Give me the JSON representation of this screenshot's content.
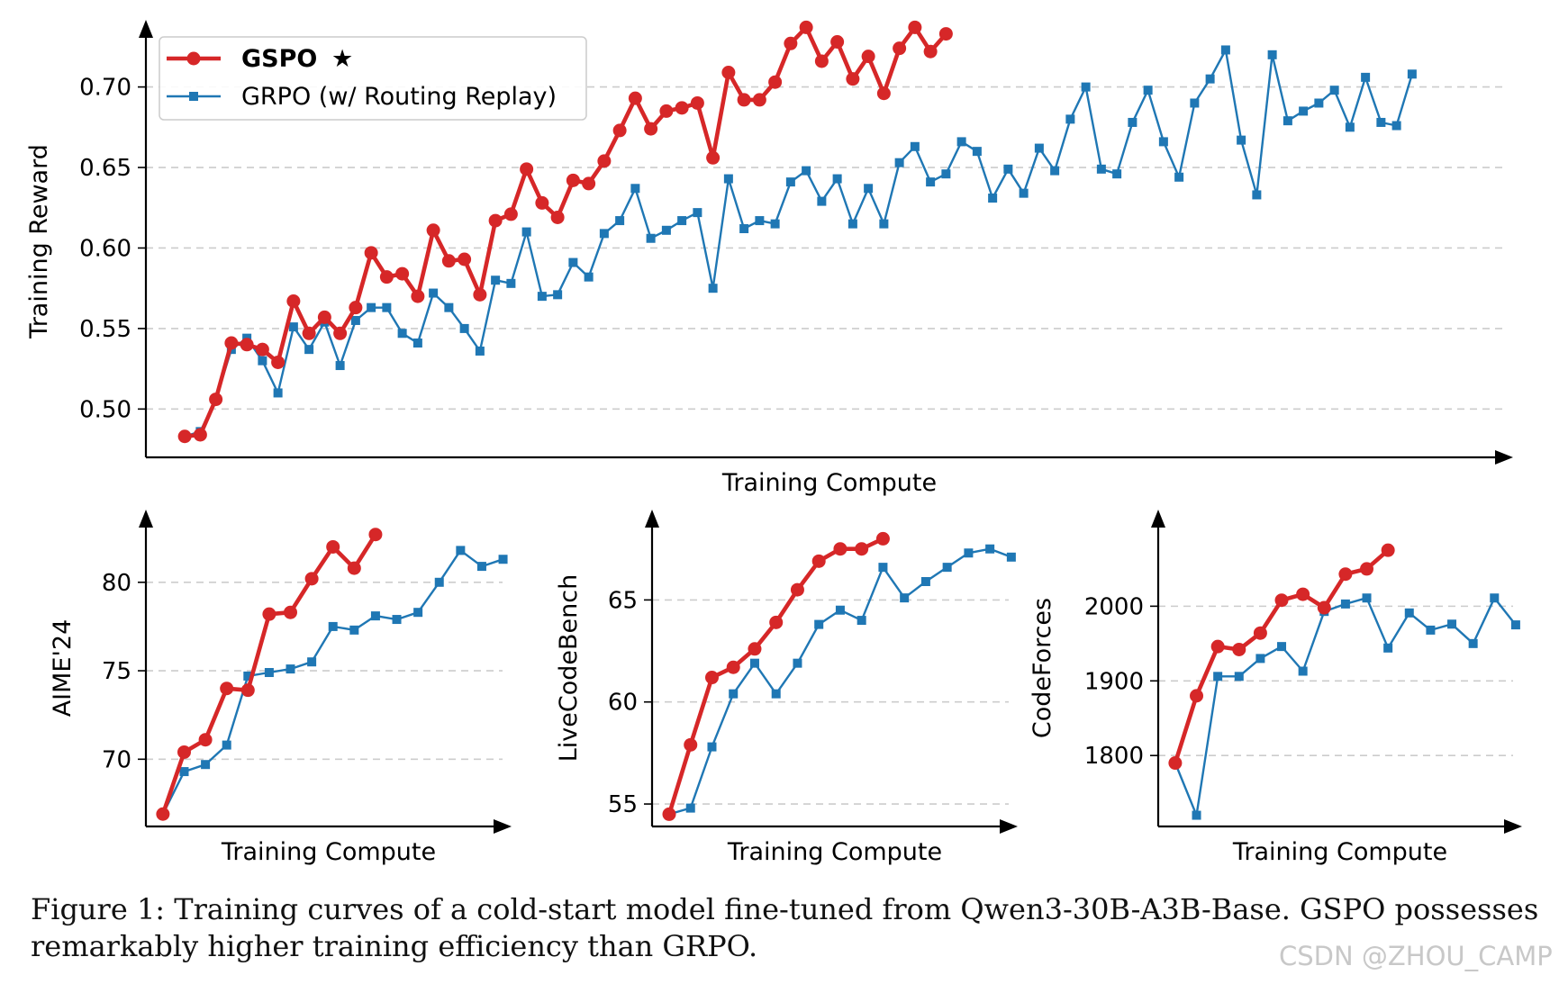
{
  "colors": {
    "gspo": "#d62728",
    "grpo": "#1f77b4",
    "grid": "#cccccc",
    "axis": "#000000"
  },
  "legend": {
    "gspo_label": "GSPO",
    "gspo_star": "★",
    "grpo_label": "GRPO (w/ Routing Replay)"
  },
  "caption": "Figure 1: Training curves of a cold-start model fine-tuned from Qwen3-30B-A3B-Base. GSPO possesses remarkably higher training efficiency than GRPO.",
  "watermark": "CSDN @ZHOU_CAMP",
  "chart_data": [
    {
      "id": "reward",
      "type": "line",
      "title": "",
      "xlabel": "Training Compute",
      "ylabel": "Training Reward",
      "ylim": [
        0.47,
        0.735
      ],
      "xlim": [
        -2.5,
        85.5
      ],
      "yticks": [
        0.5,
        0.55,
        0.6,
        0.65,
        0.7
      ],
      "ytick_labels": [
        "0.50",
        "0.55",
        "0.60",
        "0.65",
        "0.70"
      ],
      "grid": true,
      "legend_position": "top-left",
      "series": [
        {
          "name": "GSPO",
          "color": "#d62728",
          "values": [
            0.483,
            0.484,
            0.506,
            0.541,
            0.54,
            0.537,
            0.529,
            0.567,
            0.547,
            0.557,
            0.547,
            0.563,
            0.597,
            0.582,
            0.584,
            0.57,
            0.611,
            0.592,
            0.593,
            0.571,
            0.617,
            0.621,
            0.649,
            0.628,
            0.619,
            0.642,
            0.64,
            0.654,
            0.673,
            0.693,
            0.674,
            0.685,
            0.687,
            0.69,
            0.656,
            0.709,
            0.692,
            0.692,
            0.703,
            0.727,
            0.737,
            0.716,
            0.728,
            0.705,
            0.719,
            0.696,
            0.724,
            0.737,
            0.722,
            0.733
          ]
        },
        {
          "name": "GRPO (w/ Routing Replay)",
          "color": "#1f77b4",
          "values": [
            0.483,
            0.486,
            0.506,
            0.537,
            0.544,
            0.53,
            0.51,
            0.551,
            0.537,
            0.554,
            0.527,
            0.555,
            0.563,
            0.563,
            0.547,
            0.541,
            0.572,
            0.563,
            0.55,
            0.536,
            0.58,
            0.578,
            0.61,
            0.57,
            0.571,
            0.591,
            0.582,
            0.609,
            0.617,
            0.637,
            0.606,
            0.611,
            0.617,
            0.622,
            0.575,
            0.643,
            0.612,
            0.617,
            0.615,
            0.641,
            0.648,
            0.629,
            0.643,
            0.615,
            0.637,
            0.615,
            0.653,
            0.663,
            0.641,
            0.646,
            0.666,
            0.66,
            0.631,
            0.649,
            0.634,
            0.662,
            0.648,
            0.68,
            0.7,
            0.649,
            0.646,
            0.678,
            0.698,
            0.666,
            0.644,
            0.69,
            0.705,
            0.723,
            0.667,
            0.633,
            0.72,
            0.679,
            0.685,
            0.69,
            0.698,
            0.675,
            0.706,
            0.678,
            0.676,
            0.708
          ]
        }
      ]
    },
    {
      "id": "aime",
      "type": "line",
      "title": "",
      "xlabel": "Training Compute",
      "ylabel": "AIME'24",
      "ylim": [
        66.2,
        83.5
      ],
      "xlim": [
        -0.8,
        16.4
      ],
      "yticks": [
        70,
        75,
        80
      ],
      "ytick_labels": [
        "70",
        "75",
        "80"
      ],
      "grid": true,
      "series": [
        {
          "name": "GSPO",
          "color": "#d62728",
          "values": [
            66.9,
            70.4,
            71.1,
            74.0,
            73.9,
            78.2,
            78.3,
            80.2,
            82.0,
            80.8,
            82.7
          ]
        },
        {
          "name": "GRPO (w/ Routing Replay)",
          "color": "#1f77b4",
          "values": [
            66.9,
            69.3,
            69.7,
            70.8,
            74.7,
            74.9,
            75.1,
            75.5,
            77.5,
            77.3,
            78.1,
            77.9,
            78.3,
            80.0,
            81.8,
            80.9,
            81.3
          ]
        }
      ]
    },
    {
      "id": "livecodebench",
      "type": "line",
      "title": "",
      "xlabel": "Training Compute",
      "ylabel": "LiveCodeBench",
      "ylim": [
        53.9,
        68.9
      ],
      "xlim": [
        -0.8,
        16.3
      ],
      "yticks": [
        55,
        60,
        65
      ],
      "ytick_labels": [
        "55",
        "60",
        "65"
      ],
      "grid": true,
      "series": [
        {
          "name": "GSPO",
          "color": "#d62728",
          "values": [
            54.5,
            57.9,
            61.2,
            61.7,
            62.6,
            63.9,
            65.5,
            66.9,
            67.5,
            67.5,
            68.0
          ]
        },
        {
          "name": "GRPO (w/ Routing Replay)",
          "color": "#1f77b4",
          "values": [
            54.5,
            54.8,
            57.8,
            60.4,
            61.9,
            60.4,
            61.9,
            63.8,
            64.5,
            64.0,
            66.6,
            65.1,
            65.9,
            66.6,
            67.3,
            67.5,
            67.1
          ]
        }
      ]
    },
    {
      "id": "codeforces",
      "type": "line",
      "title": "",
      "xlabel": "Training Compute",
      "ylabel": "CodeForces",
      "ylim": [
        1705,
        2115
      ],
      "xlim": [
        -0.8,
        16.3
      ],
      "yticks": [
        1800,
        1900,
        2000
      ],
      "ytick_labels": [
        "1800",
        "1900",
        "2000"
      ],
      "grid": true,
      "series": [
        {
          "name": "GSPO",
          "color": "#d62728",
          "values": [
            1790,
            1880,
            1946,
            1942,
            1964,
            2008,
            2016,
            1998,
            2043,
            2050,
            2075
          ]
        },
        {
          "name": "GRPO (w/ Routing Replay)",
          "color": "#1f77b4",
          "values": [
            1790,
            1720,
            1906,
            1906,
            1930,
            1946,
            1913,
            1993,
            2003,
            2011,
            1944,
            1991,
            1968,
            1976,
            1950,
            2011,
            1975
          ]
        }
      ]
    }
  ]
}
